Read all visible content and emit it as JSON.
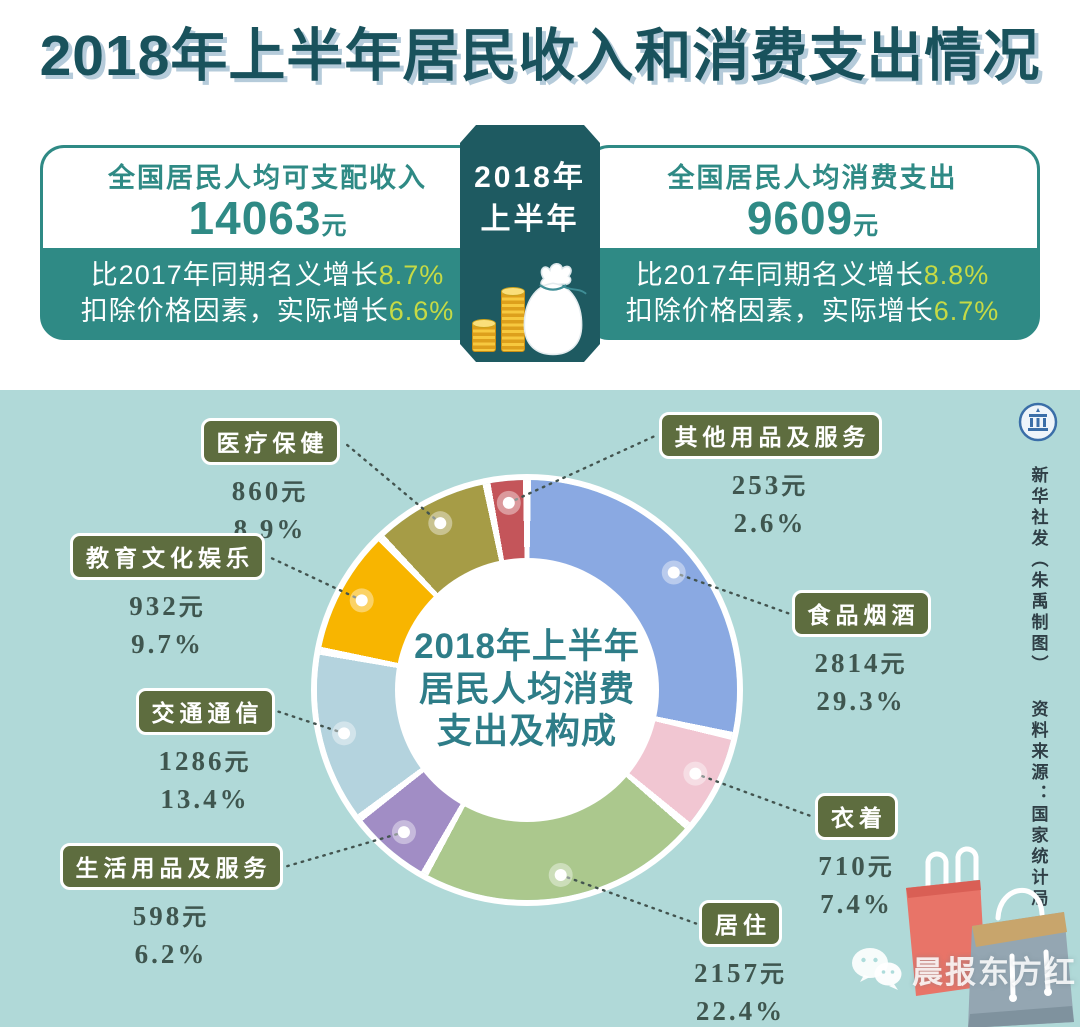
{
  "title": "2018年上半年居民收入和消费支出情况",
  "period": {
    "line1": "2018年",
    "line2": "上半年"
  },
  "income_box": {
    "label": "全国居民人均可支配收入",
    "value": "14063",
    "unit": "元",
    "growth_prefix": "比2017年同期名义增长",
    "growth": "8.7%",
    "real_prefix": "扣除价格因素，实际增长",
    "real": "6.6%"
  },
  "expense_box": {
    "label": "全国居民人均消费支出",
    "value": "9609",
    "unit": "元",
    "growth_prefix": "比2017年同期名义增长",
    "growth": "8.8%",
    "real_prefix": "扣除价格因素，实际增长",
    "real": "6.7%"
  },
  "chart_data": {
    "type": "pie",
    "title": "2018年上半年居民人均消费支出及构成",
    "center_lines": [
      "2018年上半年",
      "居民人均消费",
      "支出及构成"
    ],
    "unit": "元",
    "pct_unit": "%",
    "total_pct": 99.9,
    "gap_deg": 2.2,
    "start_deg": 1.1,
    "segments": [
      {
        "name": "食品烟酒",
        "value": 2814,
        "pct": 29.3,
        "color": "#8aa9e2"
      },
      {
        "name": "衣着",
        "value": 710,
        "pct": 7.4,
        "color": "#f1c6d2"
      },
      {
        "name": "居住",
        "value": 2157,
        "pct": 22.4,
        "color": "#abc88d"
      },
      {
        "name": "生活用品及服务",
        "value": 598,
        "pct": 6.2,
        "color": "#a18dc5"
      },
      {
        "name": "交通通信",
        "value": 1286,
        "pct": 13.4,
        "color": "#b4d3de"
      },
      {
        "name": "教育文化娱乐",
        "value": 932,
        "pct": 9.7,
        "color": "#f8b500"
      },
      {
        "name": "医疗保健",
        "value": 860,
        "pct": 8.9,
        "color": "#a69c46"
      },
      {
        "name": "其他用品及服务",
        "value": 253,
        "pct": 2.6,
        "color": "#c4555a"
      }
    ]
  },
  "credits": {
    "byline": "新华社发（朱禹制图）",
    "source": "资料来源：国家统计局"
  },
  "watermark": {
    "name": "晨报东方红"
  }
}
